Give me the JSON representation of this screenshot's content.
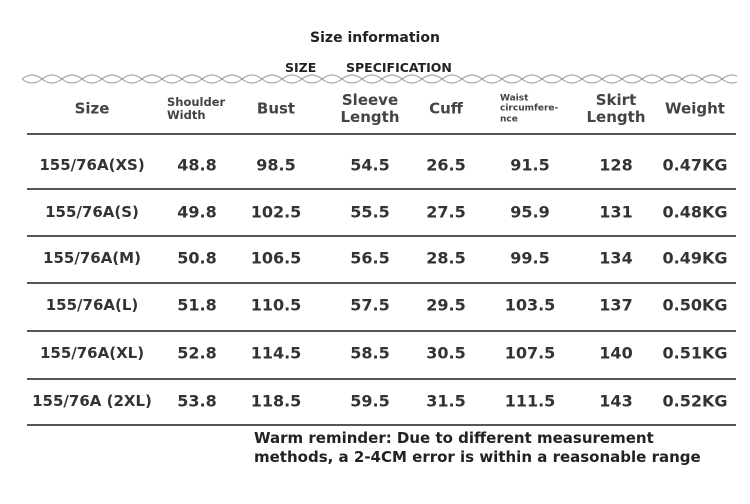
{
  "title": "Size information",
  "subtitle": [
    "SIZE",
    "SPECIFICATION"
  ],
  "headers": [
    "Size",
    "Shoulder Width",
    "Bust",
    "Sleeve Length",
    "Cuff",
    "Waist circumfere-nce",
    "Skirt Length",
    "Weight"
  ],
  "rows": [
    [
      "155/76A(XS)",
      "48.8",
      "98.5",
      "54.5",
      "26.5",
      "91.5",
      "128",
      "0.47KG"
    ],
    [
      "155/76A(S)",
      "49.8",
      "102.5",
      "55.5",
      "27.5",
      "95.9",
      "131",
      "0.48KG"
    ],
    [
      "155/76A(M)",
      "50.8",
      "106.5",
      "56.5",
      "28.5",
      "99.5",
      "134",
      "0.49KG"
    ],
    [
      "155/76A(L)",
      "51.8",
      "110.5",
      "57.5",
      "29.5",
      "103.5",
      "137",
      "0.50KG"
    ],
    [
      "155/76A(XL)",
      "52.8",
      "114.5",
      "58.5",
      "30.5",
      "107.5",
      "140",
      "0.51KG"
    ],
    [
      "155/76A (2XL)",
      "53.8",
      "118.5",
      "59.5",
      "31.5",
      "111.5",
      "143",
      "0.52KG"
    ]
  ],
  "note": [
    "Warm reminder: Due to different measurement",
    "methods, a 2-4CM error is within a reasonable range"
  ]
}
